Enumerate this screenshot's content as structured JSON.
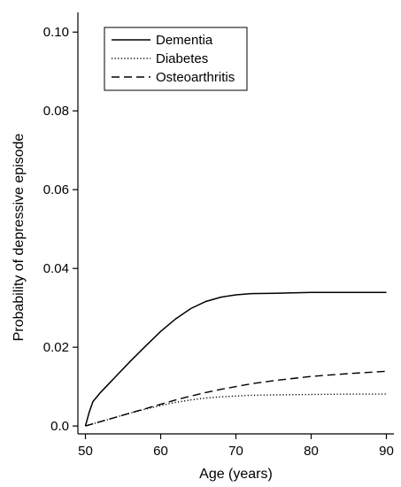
{
  "chart_data": {
    "type": "line",
    "title": "",
    "xlabel": "Age (years)",
    "ylabel": "Probability of depressive episode",
    "xlim": [
      49,
      91
    ],
    "ylim": [
      -0.002,
      0.105
    ],
    "xticks": [
      50,
      60,
      70,
      80,
      90
    ],
    "yticks": [
      0.0,
      0.02,
      0.04,
      0.06,
      0.08,
      0.1
    ],
    "ytick_labels": [
      "0.0",
      "0.02",
      "0.04",
      "0.06",
      "0.08",
      "0.10"
    ],
    "legend_position": "top-left",
    "grid": false,
    "series": [
      {
        "name": "Dementia",
        "line_style": "solid",
        "x": [
          50,
          50.5,
          51,
          52,
          54,
          56,
          58,
          60,
          62,
          64,
          66,
          68,
          70,
          72,
          75,
          80,
          85,
          90
        ],
        "y": [
          0.0,
          0.0035,
          0.0062,
          0.0085,
          0.0125,
          0.0165,
          0.0203,
          0.024,
          0.0272,
          0.0298,
          0.0316,
          0.0327,
          0.0333,
          0.0336,
          0.0337,
          0.0339,
          0.0339,
          0.0339
        ]
      },
      {
        "name": "Diabetes",
        "line_style": "dotted",
        "x": [
          50,
          52,
          54,
          56,
          58,
          60,
          62,
          64,
          66,
          68,
          70,
          72,
          75,
          80,
          85,
          90
        ],
        "y": [
          0.0,
          0.0011,
          0.0022,
          0.0033,
          0.0043,
          0.0052,
          0.006,
          0.0066,
          0.0071,
          0.0074,
          0.0076,
          0.0078,
          0.0079,
          0.008,
          0.0081,
          0.0081
        ]
      },
      {
        "name": "Osteoarthritis",
        "line_style": "dashed",
        "x": [
          50,
          52,
          54,
          56,
          58,
          60,
          62,
          64,
          66,
          68,
          70,
          72,
          75,
          80,
          85,
          90
        ],
        "y": [
          0.0,
          0.0011,
          0.0022,
          0.0033,
          0.0044,
          0.0055,
          0.0066,
          0.0076,
          0.0085,
          0.0093,
          0.01,
          0.0107,
          0.0115,
          0.0126,
          0.0133,
          0.0139
        ]
      }
    ]
  }
}
